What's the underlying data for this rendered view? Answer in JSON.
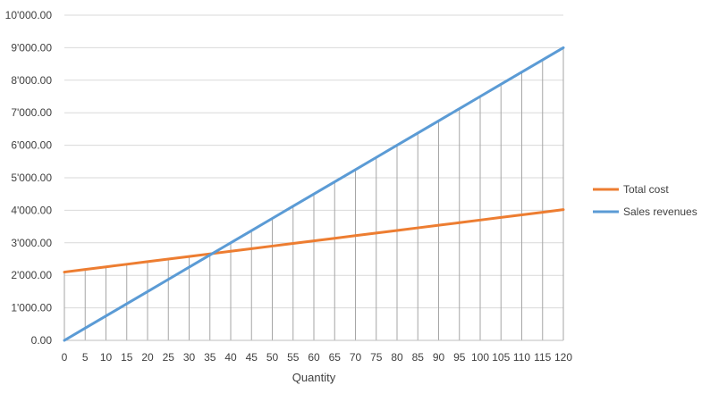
{
  "chart_data": {
    "type": "line",
    "xlabel": "Quantity",
    "ylabel": "",
    "x": [
      0,
      5,
      10,
      15,
      20,
      25,
      30,
      35,
      40,
      45,
      50,
      55,
      60,
      65,
      70,
      75,
      80,
      85,
      90,
      95,
      100,
      105,
      110,
      115,
      120
    ],
    "ylim": [
      0,
      10000
    ],
    "yticks": [
      0,
      1000,
      2000,
      3000,
      4000,
      5000,
      6000,
      7000,
      8000,
      9000,
      10000
    ],
    "ytick_labels": [
      "0.00",
      "1'000.00",
      "2'000.00",
      "3'000.00",
      "4'000.00",
      "5'000.00",
      "6'000.00",
      "7'000.00",
      "8'000.00",
      "9'000.00",
      "10'000.00"
    ],
    "grid": "horizontal gridlines with vertical drop lines",
    "legend": "right",
    "series": [
      {
        "name": "Total cost",
        "color": "#ED7D31",
        "values": [
          2100,
          2180,
          2260,
          2340,
          2420,
          2500,
          2580,
          2660,
          2740,
          2820,
          2900,
          2980,
          3060,
          3140,
          3220,
          3300,
          3380,
          3460,
          3540,
          3620,
          3700,
          3780,
          3860,
          3940,
          4020
        ]
      },
      {
        "name": "Sales revenues",
        "color": "#5B9BD5",
        "values": [
          0,
          375,
          750,
          1125,
          1500,
          1875,
          2250,
          2625,
          3000,
          3375,
          3750,
          4125,
          4500,
          4875,
          5250,
          5625,
          6000,
          6375,
          6750,
          7125,
          7500,
          7875,
          8250,
          8625,
          9000
        ]
      }
    ]
  }
}
